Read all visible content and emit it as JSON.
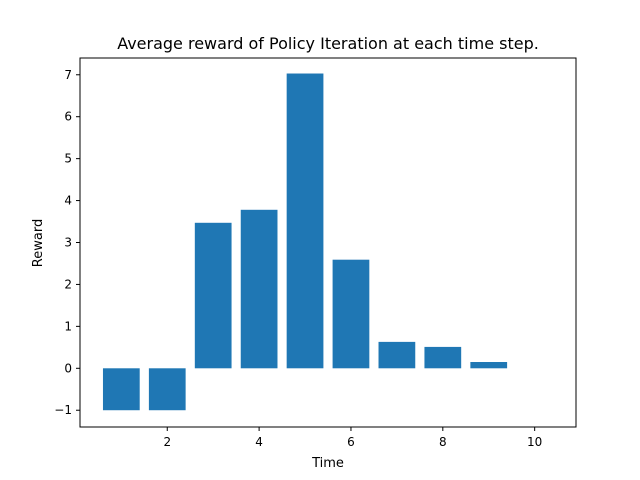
{
  "chart_data": {
    "type": "bar",
    "title": "Average reward of Policy Iteration at each time step.",
    "xlabel": "Time",
    "ylabel": "Reward",
    "x": [
      1,
      2,
      3,
      4,
      5,
      6,
      7,
      8,
      9,
      10
    ],
    "values": [
      -1.0,
      -1.0,
      3.47,
      3.78,
      7.03,
      2.59,
      0.63,
      0.51,
      0.15,
      0.0
    ],
    "bar_width": 0.8,
    "xlim": [
      0.1,
      10.9
    ],
    "ylim": [
      -1.4,
      7.4
    ],
    "xticks": [
      2,
      4,
      6,
      8,
      10
    ],
    "xtick_labels": [
      "2",
      "4",
      "6",
      "8",
      "10"
    ],
    "yticks": [
      -1,
      0,
      1,
      2,
      3,
      4,
      5,
      6,
      7
    ],
    "ytick_labels": [
      "−1",
      "0",
      "1",
      "2",
      "3",
      "4",
      "5",
      "6",
      "7"
    ],
    "grid": false,
    "bar_color": "#1f77b4"
  }
}
